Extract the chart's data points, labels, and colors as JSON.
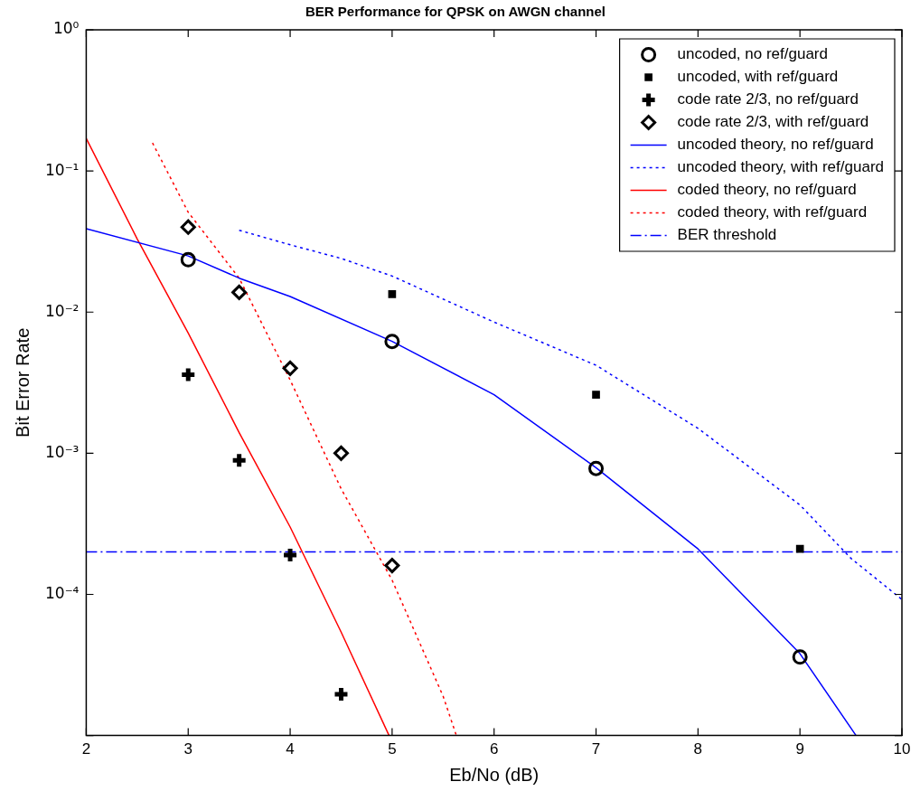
{
  "chart_data": {
    "type": "line",
    "title": "BER Performance for QPSK on AWGN channel",
    "xlabel": "Eb/No (dB)",
    "ylabel": "Bit Error Rate",
    "log": "y",
    "grid": false,
    "legend": "top right",
    "xlim": [
      2,
      10
    ],
    "xticks": [
      2,
      3,
      4,
      5,
      6,
      7,
      8,
      9,
      10
    ],
    "ylim": [
      1e-05,
      1
    ],
    "yticks": [
      {
        "value": 1e-05,
        "label": null
      },
      {
        "value": 0.0001,
        "label": "10⁻⁴"
      },
      {
        "value": 0.001,
        "label": "10⁻³"
      },
      {
        "value": 0.01,
        "label": "10⁻²"
      },
      {
        "value": 0.1,
        "label": "10⁻¹"
      },
      {
        "value": 1,
        "label": "10⁰"
      }
    ],
    "series": [
      {
        "name": "uncoded, no ref/guard",
        "type": "scatter",
        "marker": "circle",
        "color": "#000000",
        "x": [
          3,
          5,
          7,
          9
        ],
        "values": [
          0.0235,
          0.0062,
          0.00078,
          3.6e-05
        ]
      },
      {
        "name": "uncoded, with ref/guard",
        "type": "scatter",
        "marker": "square",
        "color": "#000000",
        "x": [
          5,
          7,
          9
        ],
        "values": [
          0.0134,
          0.0026,
          0.00021
        ]
      },
      {
        "name": "code rate 2/3, no ref/guard",
        "type": "scatter",
        "marker": "cross",
        "color": "#000000",
        "x": [
          3,
          3.5,
          4,
          4.5
        ],
        "values": [
          0.0036,
          0.00089,
          0.00019,
          1.96e-05
        ]
      },
      {
        "name": "code rate 2/3, with ref/guard",
        "type": "scatter",
        "marker": "diamond",
        "color": "#000000",
        "x": [
          3,
          3.5,
          4,
          4.5,
          5
        ],
        "values": [
          0.04,
          0.0138,
          0.004,
          0.001,
          0.00016
        ]
      },
      {
        "name": "uncoded theory, no ref/guard",
        "type": "line",
        "line_style": "solid",
        "color": "#0000ff",
        "x": [
          2,
          3,
          3.5,
          4,
          5,
          6,
          7,
          8,
          9,
          9.55
        ],
        "values": [
          0.039,
          0.025,
          0.0174,
          0.0129,
          0.0062,
          0.0026,
          0.00079,
          0.00021,
          3.8e-05,
          1e-05
        ]
      },
      {
        "name": "uncoded theory, with ref/guard",
        "type": "line",
        "line_style": "dotted",
        "color": "#0000ff",
        "x": [
          3.5,
          4,
          4.5,
          5,
          6,
          7,
          8,
          9,
          9.5,
          10
        ],
        "values": [
          0.038,
          0.03,
          0.024,
          0.018,
          0.0085,
          0.0042,
          0.0015,
          0.00043,
          0.00018,
          9.2e-05
        ]
      },
      {
        "name": "coded theory, no ref/guard",
        "type": "line",
        "line_style": "solid",
        "color": "#ff0000",
        "x": [
          2,
          2.5,
          3,
          3.5,
          4,
          4.5,
          4.97
        ],
        "values": [
          0.17,
          0.033,
          0.0071,
          0.0014,
          0.0003,
          5.4e-05,
          1e-05
        ]
      },
      {
        "name": "coded theory, with ref/guard",
        "type": "line",
        "line_style": "dotted",
        "color": "#ff0000",
        "x": [
          2.65,
          3,
          3.5,
          4,
          4.5,
          5,
          5.5,
          5.63
        ],
        "values": [
          0.158,
          0.051,
          0.0174,
          0.0033,
          0.00056,
          0.000126,
          1.9e-05,
          1e-05
        ]
      }
    ],
    "ref_lines": [
      {
        "axis": "y",
        "value": 0.0002,
        "label": "BER threshold",
        "color": "#0000ff",
        "line_style": "dashdot"
      }
    ]
  }
}
